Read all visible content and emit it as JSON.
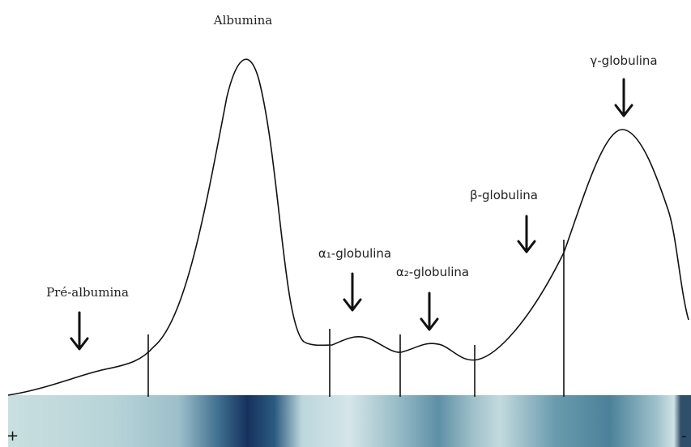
{
  "labels": {
    "albumina": "Albumina",
    "gamma": "γ-globulina",
    "beta": "β-globulina",
    "alpha1": "α₁-globulina",
    "alpha2": "α₂-globulina",
    "pre_albumina": "Pré-albumina"
  },
  "strip": {
    "anode": "+",
    "cathode": "-"
  }
}
